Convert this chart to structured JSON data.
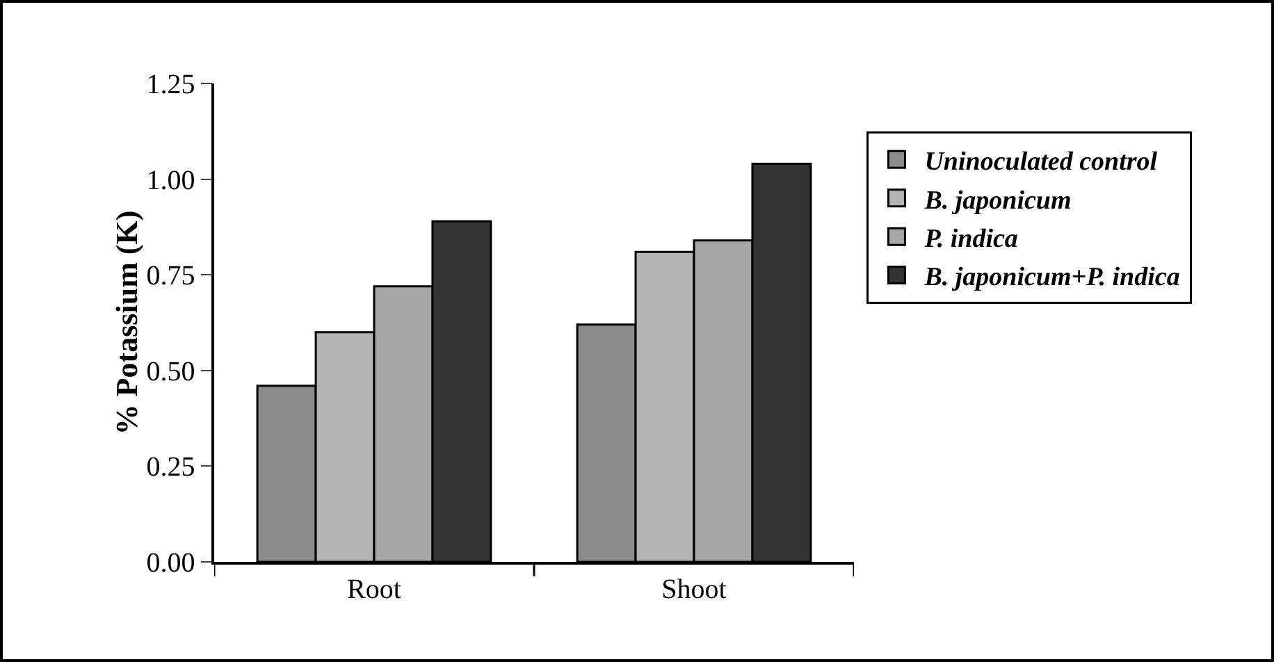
{
  "chart_data": {
    "type": "bar",
    "ylabel": "% Potassium (K)",
    "categories": [
      "Root",
      "Shoot"
    ],
    "series": [
      {
        "name": "Uninoculated control",
        "color": "#8c8c8c",
        "values": [
          0.46,
          0.62
        ]
      },
      {
        "name": "B. japonicum",
        "color": "#b4b4b4",
        "values": [
          0.6,
          0.81
        ]
      },
      {
        "name": "P. indica",
        "color": "#a6a6a6",
        "values": [
          0.72,
          0.84
        ]
      },
      {
        "name": "B. japonicum+P. indica",
        "color": "#333333",
        "values": [
          0.89,
          1.04
        ]
      }
    ],
    "ylim": [
      0,
      1.25
    ],
    "yticks": [
      {
        "value": 0,
        "label": "0.00"
      },
      {
        "value": 0.25,
        "label": "0.25"
      },
      {
        "value": 0.5,
        "label": "0.50"
      },
      {
        "value": 0.75,
        "label": "0.75"
      },
      {
        "value": 1,
        "label": "1.00"
      },
      {
        "value": 1.25,
        "label": "1.25"
      }
    ],
    "grid": false,
    "legend": "right"
  }
}
